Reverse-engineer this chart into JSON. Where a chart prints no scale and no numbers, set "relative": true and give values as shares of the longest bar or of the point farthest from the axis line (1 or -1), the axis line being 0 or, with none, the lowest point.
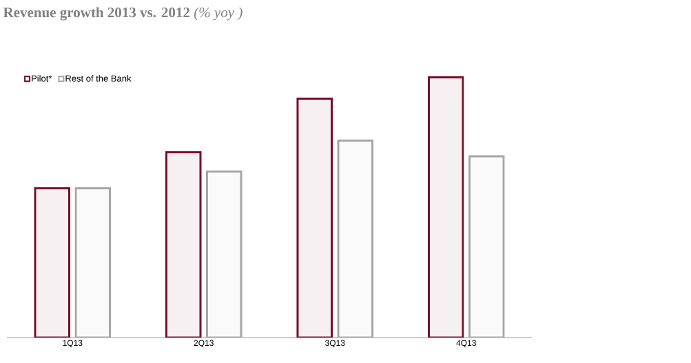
{
  "chart_data": {
    "type": "bar",
    "title": "**Revenue growth 2013 vs. 2012** *(% yoy )*",
    "relative": true,
    "legend": "top left",
    "categories": [
      "1Q13",
      "2Q13",
      "3Q13",
      "4Q13"
    ],
    "series": [
      {
        "name": "Pilot*",
        "color": "#7b0a2a",
        "values": [
          0.574,
          0.712,
          0.918,
          1
        ]
      },
      {
        "name": "Rest of the Bank",
        "color": "#a6a6a6",
        "values": [
          0.574,
          0.638,
          0.757,
          0.696
        ]
      }
    ]
  }
}
